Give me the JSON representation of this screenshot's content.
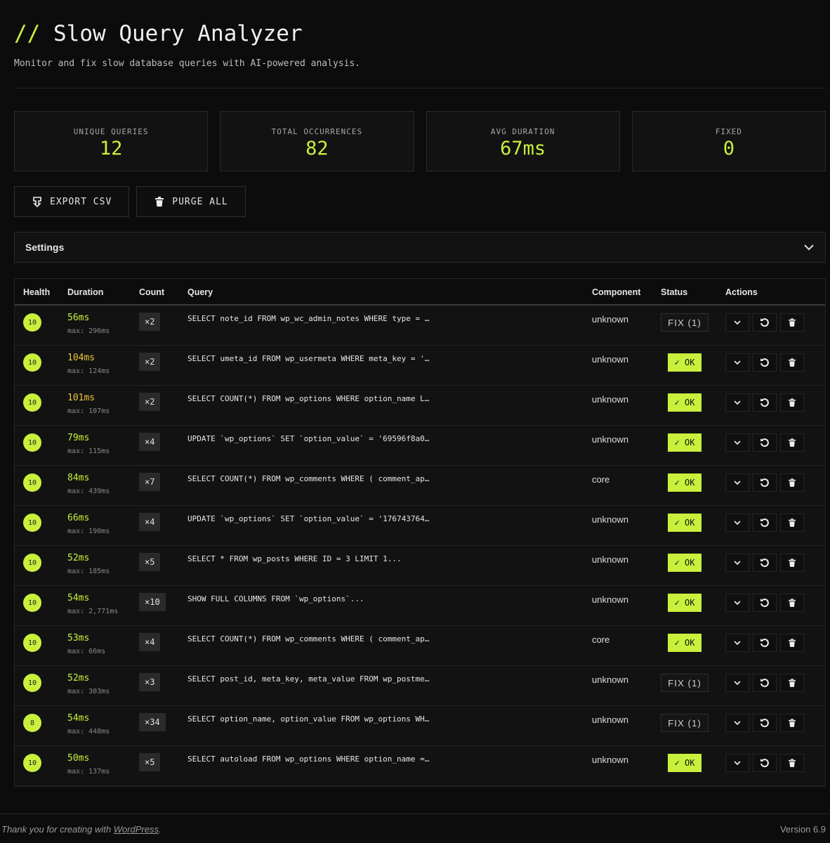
{
  "header": {
    "prefix": "//",
    "title": "Slow Query Analyzer",
    "subtitle": "Monitor and fix slow database queries with AI-powered analysis."
  },
  "stats": [
    {
      "label": "UNIQUE QUERIES",
      "value": "12"
    },
    {
      "label": "TOTAL OCCURRENCES",
      "value": "82"
    },
    {
      "label": "AVG DURATION",
      "value": "67ms"
    },
    {
      "label": "FIXED",
      "value": "0"
    }
  ],
  "toolbar": {
    "export_label": "EXPORT CSV",
    "purge_label": "PURGE ALL"
  },
  "settings": {
    "label": "Settings"
  },
  "colors": {
    "accent": "#c8f03c",
    "warn": "#f0c43a"
  },
  "table": {
    "headers": [
      "Health",
      "Duration",
      "Count",
      "Query",
      "Component",
      "Status",
      "Actions"
    ],
    "rows": [
      {
        "health": "10",
        "duration": "56ms",
        "max": "max: 296ms",
        "count": "×2",
        "query": "SELECT note_id FROM wp_wc_admin_notes WHERE type = …",
        "component": "unknown",
        "status": "FIX (1)",
        "warn": false
      },
      {
        "health": "10",
        "duration": "104ms",
        "max": "max: 124ms",
        "count": "×2",
        "query": "SELECT umeta_id FROM wp_usermeta WHERE meta_key = '…",
        "component": "unknown",
        "status": "✓ OK",
        "warn": true
      },
      {
        "health": "10",
        "duration": "101ms",
        "max": "max: 107ms",
        "count": "×2",
        "query": "SELECT COUNT(*) FROM wp_options WHERE option_name L…",
        "component": "unknown",
        "status": "✓ OK",
        "warn": true
      },
      {
        "health": "10",
        "duration": "79ms",
        "max": "max: 115ms",
        "count": "×4",
        "query": "UPDATE `wp_options` SET `option_value` = '69596f8a0…",
        "component": "unknown",
        "status": "✓ OK",
        "warn": false
      },
      {
        "health": "10",
        "duration": "84ms",
        "max": "max: 439ms",
        "count": "×7",
        "query": "SELECT COUNT(*) FROM wp_comments WHERE ( comment_ap…",
        "component": "core",
        "status": "✓ OK",
        "warn": false
      },
      {
        "health": "10",
        "duration": "66ms",
        "max": "max: 190ms",
        "count": "×4",
        "query": "UPDATE `wp_options` SET `option_value` = '176743764…",
        "component": "unknown",
        "status": "✓ OK",
        "warn": false
      },
      {
        "health": "10",
        "duration": "52ms",
        "max": "max: 185ms",
        "count": "×5",
        "query": "SELECT * FROM wp_posts WHERE ID = 3 LIMIT 1...",
        "component": "unknown",
        "status": "✓ OK",
        "warn": false
      },
      {
        "health": "10",
        "duration": "54ms",
        "max": "max: 2,771ms",
        "count": "×10",
        "query": "SHOW FULL COLUMNS FROM `wp_options`...",
        "component": "unknown",
        "status": "✓ OK",
        "warn": false
      },
      {
        "health": "10",
        "duration": "53ms",
        "max": "max: 66ms",
        "count": "×4",
        "query": "SELECT COUNT(*) FROM wp_comments WHERE ( comment_ap…",
        "component": "core",
        "status": "✓ OK",
        "warn": false
      },
      {
        "health": "10",
        "duration": "52ms",
        "max": "max: 303ms",
        "count": "×3",
        "query": "SELECT post_id, meta_key, meta_value FROM wp_postme…",
        "component": "unknown",
        "status": "FIX (1)",
        "warn": false
      },
      {
        "health": "8",
        "duration": "54ms",
        "max": "max: 448ms",
        "count": "×34",
        "query": "SELECT option_name, option_value FROM wp_options WH…",
        "component": "unknown",
        "status": "FIX (1)",
        "warn": false
      },
      {
        "health": "10",
        "duration": "50ms",
        "max": "max: 137ms",
        "count": "×5",
        "query": "SELECT autoload FROM wp_options WHERE option_name =…",
        "component": "unknown",
        "status": "✓ OK",
        "warn": false
      }
    ]
  },
  "footer": {
    "thanks_prefix": "Thank you for creating with ",
    "thanks_link": "WordPress",
    "thanks_suffix": ".",
    "version": "Version 6.9"
  }
}
